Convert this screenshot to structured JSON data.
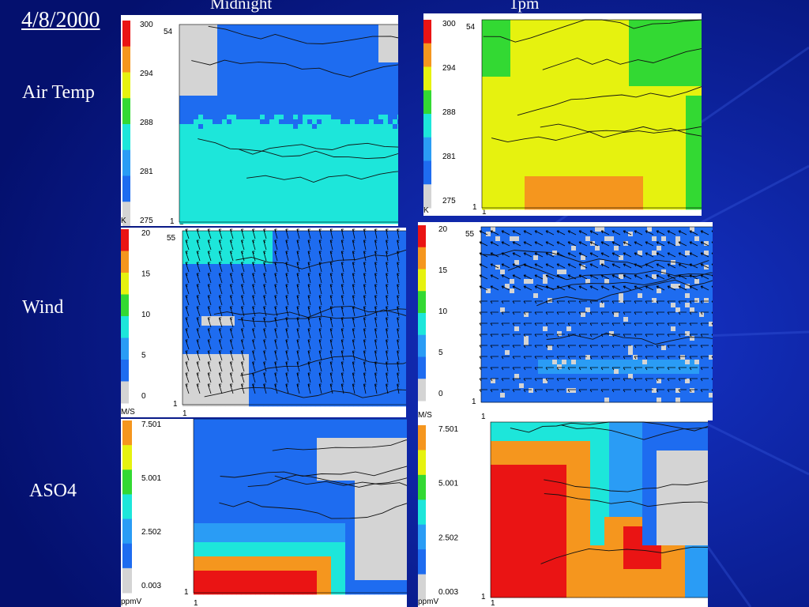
{
  "slide": {
    "date": "4/8/2000",
    "columns": [
      "Midnight",
      "1pm"
    ],
    "rows": [
      "Air Temp",
      "Wind",
      "ASO4"
    ]
  },
  "palette": {
    "background": "#061a8f",
    "gray": "#d4d4d4",
    "blue": "#1e6cf0",
    "lightblue": "#2a9cf5",
    "cyan": "#1de6da",
    "green": "#33d933",
    "yellow": "#e6f20f",
    "orange": "#f5961e",
    "red": "#ea1414"
  },
  "panels": [
    {
      "id": "temp-mid",
      "title": "Air Temp Midnight",
      "unit": "K",
      "ticks": [
        "300",
        "294",
        "288",
        "281",
        "275"
      ],
      "ymax": "54",
      "ymin": "1",
      "xmin": "1",
      "xmax": "66",
      "theme": "temp-mid"
    },
    {
      "id": "temp-1pm",
      "title": "Air Temp 1pm",
      "unit": "K",
      "ticks": [
        "300",
        "294",
        "288",
        "281",
        "275"
      ],
      "ymax": "54",
      "ymin": "1",
      "xmin": "1",
      "xmax": "66",
      "theme": "temp-1pm"
    },
    {
      "id": "wind-mid",
      "title": "Wind Midnight",
      "unit": "M/S",
      "ticks": [
        "20",
        "15",
        "10",
        "5",
        "0"
      ],
      "ymax": "55",
      "ymin": "1",
      "xmin": "1",
      "xmax": "67",
      "theme": "wind-mid"
    },
    {
      "id": "wind-1pm",
      "title": "Wind 1pm",
      "unit": "M/S",
      "ticks": [
        "20",
        "15",
        "10",
        "5",
        "0"
      ],
      "ymax": "55",
      "ymin": "1",
      "xmin": "1",
      "xmax": "67",
      "theme": "wind-1pm"
    },
    {
      "id": "aso4-mid",
      "title": "ASO4 Midnight",
      "unit": "ppmV",
      "ticks": [
        "7.501",
        "5.001",
        "2.502",
        "0.003"
      ],
      "ymax": "",
      "ymin": "1",
      "xmin": "1",
      "xmax": "66",
      "theme": "aso4-mid"
    },
    {
      "id": "aso4-1pm",
      "title": "ASO4 1pm",
      "unit": "ppmV",
      "ticks": [
        "7.501",
        "5.001",
        "2.502",
        "0.003"
      ],
      "ymax": "",
      "ymin": "1",
      "xmin": "1",
      "xmax": "66",
      "theme": "aso4-1pm"
    }
  ]
}
